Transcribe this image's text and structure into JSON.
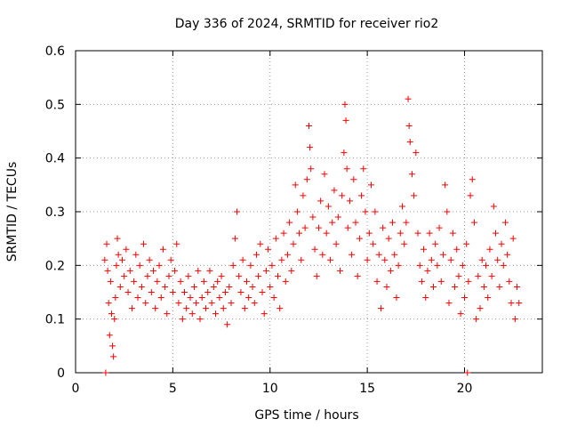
{
  "chart_data": {
    "type": "scatter",
    "title": "Day 336 of 2024, SRMTID for receiver rio2",
    "xlabel": "GPS time / hours",
    "ylabel": "SRMTID / TECUs",
    "xlim": [
      0,
      24
    ],
    "ylim": [
      0,
      0.6
    ],
    "xticks": [
      0,
      5,
      10,
      15,
      20
    ],
    "yticks": [
      0,
      0.1,
      0.2,
      0.3,
      0.4,
      0.5,
      0.6
    ],
    "xtick_labels": [
      "0",
      "5",
      "10",
      "15",
      "20"
    ],
    "ytick_labels": [
      "0",
      "0.1",
      "0.2",
      "0.3",
      "0.4",
      "0.5",
      "0.6"
    ],
    "grid": true,
    "marker": "plus",
    "color": "#ff0000",
    "series": [
      {
        "name": "SRMTID",
        "points": [
          [
            1.5,
            0.21
          ],
          [
            1.6,
            0.24
          ],
          [
            1.65,
            0.19
          ],
          [
            1.7,
            0.13
          ],
          [
            1.75,
            0.07
          ],
          [
            1.8,
            0.17
          ],
          [
            1.85,
            0.11
          ],
          [
            1.9,
            0.05
          ],
          [
            1.95,
            0.03
          ],
          [
            2.0,
            0.1
          ],
          [
            2.05,
            0.14
          ],
          [
            2.1,
            0.2
          ],
          [
            2.15,
            0.25
          ],
          [
            2.2,
            0.22
          ],
          [
            2.3,
            0.16
          ],
          [
            2.4,
            0.21
          ],
          [
            2.5,
            0.18
          ],
          [
            2.6,
            0.23
          ],
          [
            2.7,
            0.15
          ],
          [
            2.8,
            0.19
          ],
          [
            2.9,
            0.12
          ],
          [
            3.0,
            0.17
          ],
          [
            3.1,
            0.22
          ],
          [
            3.2,
            0.14
          ],
          [
            3.3,
            0.2
          ],
          [
            3.4,
            0.16
          ],
          [
            3.5,
            0.24
          ],
          [
            3.6,
            0.13
          ],
          [
            3.7,
            0.18
          ],
          [
            3.8,
            0.21
          ],
          [
            3.9,
            0.15
          ],
          [
            4.0,
            0.19
          ],
          [
            4.1,
            0.12
          ],
          [
            4.2,
            0.17
          ],
          [
            4.3,
            0.2
          ],
          [
            4.4,
            0.14
          ],
          [
            4.5,
            0.23
          ],
          [
            4.6,
            0.16
          ],
          [
            4.7,
            0.11
          ],
          [
            4.8,
            0.18
          ],
          [
            4.9,
            0.21
          ],
          [
            5.0,
            0.15
          ],
          [
            5.1,
            0.19
          ],
          [
            5.2,
            0.24
          ],
          [
            5.3,
            0.13
          ],
          [
            5.4,
            0.17
          ],
          [
            5.5,
            0.1
          ],
          [
            5.6,
            0.15
          ],
          [
            5.7,
            0.12
          ],
          [
            5.8,
            0.18
          ],
          [
            5.9,
            0.14
          ],
          [
            6.0,
            0.11
          ],
          [
            6.1,
            0.16
          ],
          [
            6.2,
            0.13
          ],
          [
            6.3,
            0.19
          ],
          [
            6.4,
            0.1
          ],
          [
            6.5,
            0.14
          ],
          [
            6.6,
            0.17
          ],
          [
            6.7,
            0.12
          ],
          [
            6.8,
            0.15
          ],
          [
            6.9,
            0.19
          ],
          [
            7.0,
            0.13
          ],
          [
            7.1,
            0.16
          ],
          [
            7.2,
            0.11
          ],
          [
            7.3,
            0.17
          ],
          [
            7.4,
            0.14
          ],
          [
            7.5,
            0.18
          ],
          [
            7.6,
            0.12
          ],
          [
            7.7,
            0.15
          ],
          [
            7.8,
            0.09
          ],
          [
            7.9,
            0.16
          ],
          [
            8.0,
            0.13
          ],
          [
            8.1,
            0.2
          ],
          [
            8.2,
            0.25
          ],
          [
            8.3,
            0.3
          ],
          [
            8.4,
            0.18
          ],
          [
            8.5,
            0.15
          ],
          [
            8.6,
            0.21
          ],
          [
            8.7,
            0.12
          ],
          [
            8.8,
            0.17
          ],
          [
            8.9,
            0.14
          ],
          [
            9.0,
            0.2
          ],
          [
            9.1,
            0.16
          ],
          [
            9.2,
            0.13
          ],
          [
            9.3,
            0.22
          ],
          [
            9.4,
            0.18
          ],
          [
            9.5,
            0.24
          ],
          [
            9.6,
            0.15
          ],
          [
            9.7,
            0.11
          ],
          [
            9.8,
            0.19
          ],
          [
            9.9,
            0.23
          ],
          [
            10.0,
            0.16
          ],
          [
            10.1,
            0.2
          ],
          [
            10.2,
            0.14
          ],
          [
            10.3,
            0.25
          ],
          [
            10.4,
            0.18
          ],
          [
            10.5,
            0.12
          ],
          [
            10.6,
            0.21
          ],
          [
            10.7,
            0.26
          ],
          [
            10.8,
            0.17
          ],
          [
            10.9,
            0.22
          ],
          [
            11.0,
            0.28
          ],
          [
            11.1,
            0.19
          ],
          [
            11.2,
            0.24
          ],
          [
            11.3,
            0.35
          ],
          [
            11.4,
            0.3
          ],
          [
            11.5,
            0.26
          ],
          [
            11.6,
            0.21
          ],
          [
            11.7,
            0.33
          ],
          [
            11.8,
            0.27
          ],
          [
            11.9,
            0.36
          ],
          [
            12.0,
            0.46
          ],
          [
            12.05,
            0.42
          ],
          [
            12.1,
            0.38
          ],
          [
            12.2,
            0.29
          ],
          [
            12.3,
            0.23
          ],
          [
            12.4,
            0.18
          ],
          [
            12.5,
            0.27
          ],
          [
            12.6,
            0.32
          ],
          [
            12.7,
            0.22
          ],
          [
            12.8,
            0.37
          ],
          [
            12.9,
            0.26
          ],
          [
            13.0,
            0.31
          ],
          [
            13.1,
            0.21
          ],
          [
            13.2,
            0.28
          ],
          [
            13.3,
            0.34
          ],
          [
            13.4,
            0.24
          ],
          [
            13.5,
            0.29
          ],
          [
            13.6,
            0.19
          ],
          [
            13.7,
            0.33
          ],
          [
            13.8,
            0.41
          ],
          [
            13.85,
            0.5
          ],
          [
            13.9,
            0.47
          ],
          [
            13.95,
            0.38
          ],
          [
            14.0,
            0.27
          ],
          [
            14.1,
            0.32
          ],
          [
            14.2,
            0.22
          ],
          [
            14.3,
            0.36
          ],
          [
            14.4,
            0.28
          ],
          [
            14.5,
            0.18
          ],
          [
            14.6,
            0.25
          ],
          [
            14.7,
            0.33
          ],
          [
            14.8,
            0.38
          ],
          [
            14.9,
            0.3
          ],
          [
            15.0,
            0.21
          ],
          [
            15.1,
            0.26
          ],
          [
            15.2,
            0.35
          ],
          [
            15.3,
            0.24
          ],
          [
            15.4,
            0.3
          ],
          [
            15.5,
            0.17
          ],
          [
            15.6,
            0.22
          ],
          [
            15.7,
            0.12
          ],
          [
            15.8,
            0.27
          ],
          [
            15.9,
            0.21
          ],
          [
            16.0,
            0.16
          ],
          [
            16.1,
            0.25
          ],
          [
            16.2,
            0.19
          ],
          [
            16.3,
            0.28
          ],
          [
            16.4,
            0.22
          ],
          [
            16.5,
            0.14
          ],
          [
            16.6,
            0.2
          ],
          [
            16.7,
            0.26
          ],
          [
            16.8,
            0.31
          ],
          [
            16.9,
            0.24
          ],
          [
            17.0,
            0.28
          ],
          [
            17.1,
            0.51
          ],
          [
            17.15,
            0.46
          ],
          [
            17.2,
            0.43
          ],
          [
            17.3,
            0.37
          ],
          [
            17.4,
            0.33
          ],
          [
            17.5,
            0.41
          ],
          [
            17.6,
            0.26
          ],
          [
            17.7,
            0.2
          ],
          [
            17.8,
            0.17
          ],
          [
            17.9,
            0.23
          ],
          [
            18.0,
            0.14
          ],
          [
            18.1,
            0.19
          ],
          [
            18.2,
            0.26
          ],
          [
            18.3,
            0.21
          ],
          [
            18.4,
            0.16
          ],
          [
            18.5,
            0.24
          ],
          [
            18.6,
            0.2
          ],
          [
            18.7,
            0.27
          ],
          [
            18.8,
            0.17
          ],
          [
            18.9,
            0.22
          ],
          [
            19.0,
            0.35
          ],
          [
            19.1,
            0.3
          ],
          [
            19.2,
            0.13
          ],
          [
            19.3,
            0.21
          ],
          [
            19.4,
            0.26
          ],
          [
            19.5,
            0.16
          ],
          [
            19.6,
            0.23
          ],
          [
            19.7,
            0.18
          ],
          [
            19.8,
            0.11
          ],
          [
            19.9,
            0.2
          ],
          [
            20.0,
            0.14
          ],
          [
            20.1,
            0.24
          ],
          [
            20.2,
            0.17
          ],
          [
            20.3,
            0.33
          ],
          [
            20.4,
            0.36
          ],
          [
            20.5,
            0.28
          ],
          [
            20.6,
            0.1
          ],
          [
            20.7,
            0.18
          ],
          [
            20.8,
            0.12
          ],
          [
            20.9,
            0.21
          ],
          [
            21.0,
            0.16
          ],
          [
            21.1,
            0.2
          ],
          [
            21.2,
            0.14
          ],
          [
            21.3,
            0.23
          ],
          [
            21.4,
            0.18
          ],
          [
            21.5,
            0.31
          ],
          [
            21.6,
            0.26
          ],
          [
            21.7,
            0.21
          ],
          [
            21.8,
            0.16
          ],
          [
            21.9,
            0.24
          ],
          [
            22.0,
            0.2
          ],
          [
            22.1,
            0.28
          ],
          [
            22.2,
            0.22
          ],
          [
            22.3,
            0.17
          ],
          [
            22.4,
            0.13
          ],
          [
            22.5,
            0.25
          ],
          [
            22.6,
            0.1
          ],
          [
            22.7,
            0.16
          ],
          [
            22.8,
            0.13
          ],
          [
            1.55,
            0.0
          ],
          [
            20.15,
            0.0
          ]
        ]
      }
    ]
  }
}
